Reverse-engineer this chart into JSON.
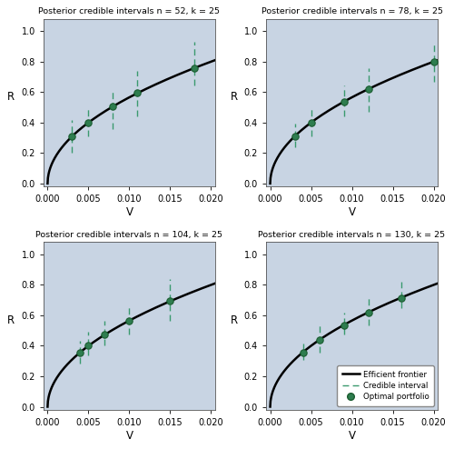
{
  "titles": [
    "Posterior credible intervals n = 52, k = 25",
    "Posterior credible intervals n = 78, k = 25",
    "Posterior credible intervals n = 104, k = 25",
    "Posterior credible intervals n = 130, k = 25"
  ],
  "xlim": [
    -0.0005,
    0.0205
  ],
  "ylim": [
    -0.02,
    1.08
  ],
  "xlabel": "V",
  "ylabel": "R",
  "bg_color": "#c8d4e3",
  "frontier_color": "#000000",
  "interval_color": "#3a9a6e",
  "point_color": "#2e7d4f",
  "frontier_scale": 5.657,
  "panels": [
    {
      "n": 52,
      "points_v": [
        0.003,
        0.005,
        0.008,
        0.011,
        0.018
      ],
      "ci_lower_v": [
        0.0013,
        0.003,
        0.004,
        0.006,
        0.013
      ],
      "ci_upper_v": [
        0.0055,
        0.008,
        0.012,
        0.017,
        0.027
      ]
    },
    {
      "n": 78,
      "points_v": [
        0.003,
        0.005,
        0.009,
        0.012,
        0.02
      ],
      "ci_lower_v": [
        0.0018,
        0.003,
        0.006,
        0.007,
        0.014
      ],
      "ci_upper_v": [
        0.0048,
        0.008,
        0.013,
        0.018,
        0.027
      ]
    },
    {
      "n": 104,
      "points_v": [
        0.004,
        0.005,
        0.007,
        0.01,
        0.015
      ],
      "ci_lower_v": [
        0.0025,
        0.0035,
        0.005,
        0.007,
        0.01
      ],
      "ci_upper_v": [
        0.0058,
        0.0075,
        0.01,
        0.014,
        0.022
      ]
    },
    {
      "n": 130,
      "points_v": [
        0.004,
        0.006,
        0.009,
        0.012,
        0.016
      ],
      "ci_lower_v": [
        0.003,
        0.004,
        0.007,
        0.009,
        0.013
      ],
      "ci_upper_v": [
        0.0055,
        0.009,
        0.012,
        0.016,
        0.021
      ]
    }
  ],
  "xticks": [
    0.0,
    0.005,
    0.01,
    0.015,
    0.02
  ],
  "yticks": [
    0.0,
    0.2,
    0.4,
    0.6,
    0.8,
    1.0
  ]
}
